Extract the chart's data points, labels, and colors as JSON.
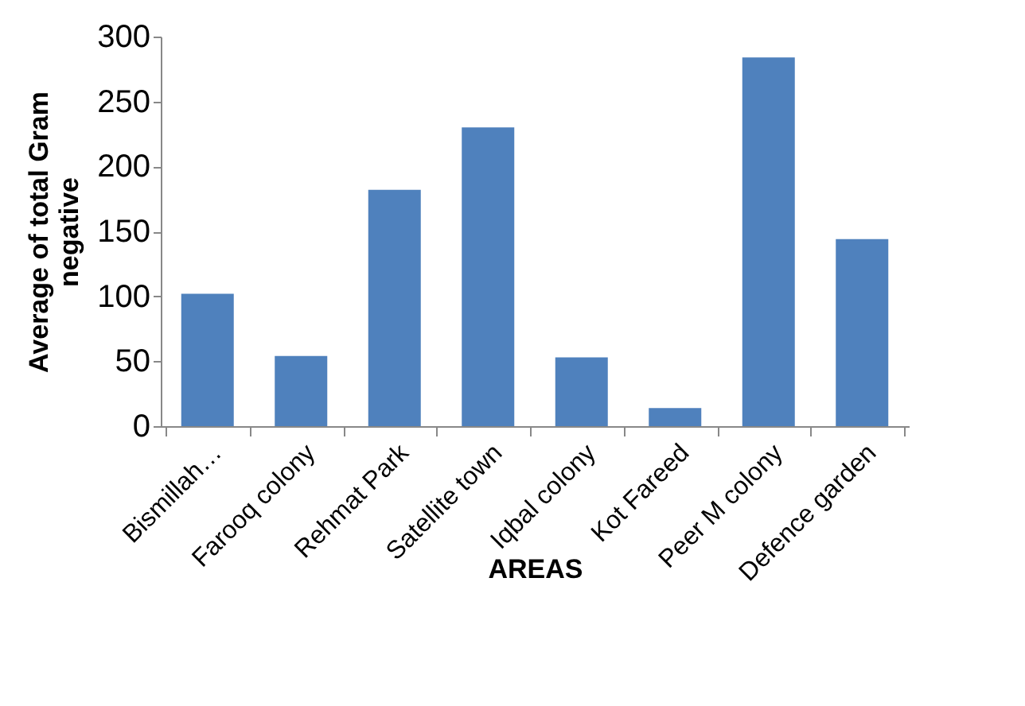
{
  "chart_data": {
    "type": "bar",
    "xlabel": "AREAS",
    "ylabel": "Average of total Gram negative",
    "categories": [
      "Bismillah…",
      "Farooq colony",
      "Rehmat Park",
      "Satellite town",
      "Iqbal colony",
      "Kot Fareed",
      "Peer M colony",
      "Defence garden"
    ],
    "values": [
      102,
      54,
      182,
      230,
      53,
      14,
      284,
      144
    ],
    "color": "#4f81bd",
    "ylim": [
      0,
      300
    ],
    "yticks": [
      0,
      50,
      100,
      150,
      200,
      250,
      300
    ],
    "grid": false
  }
}
